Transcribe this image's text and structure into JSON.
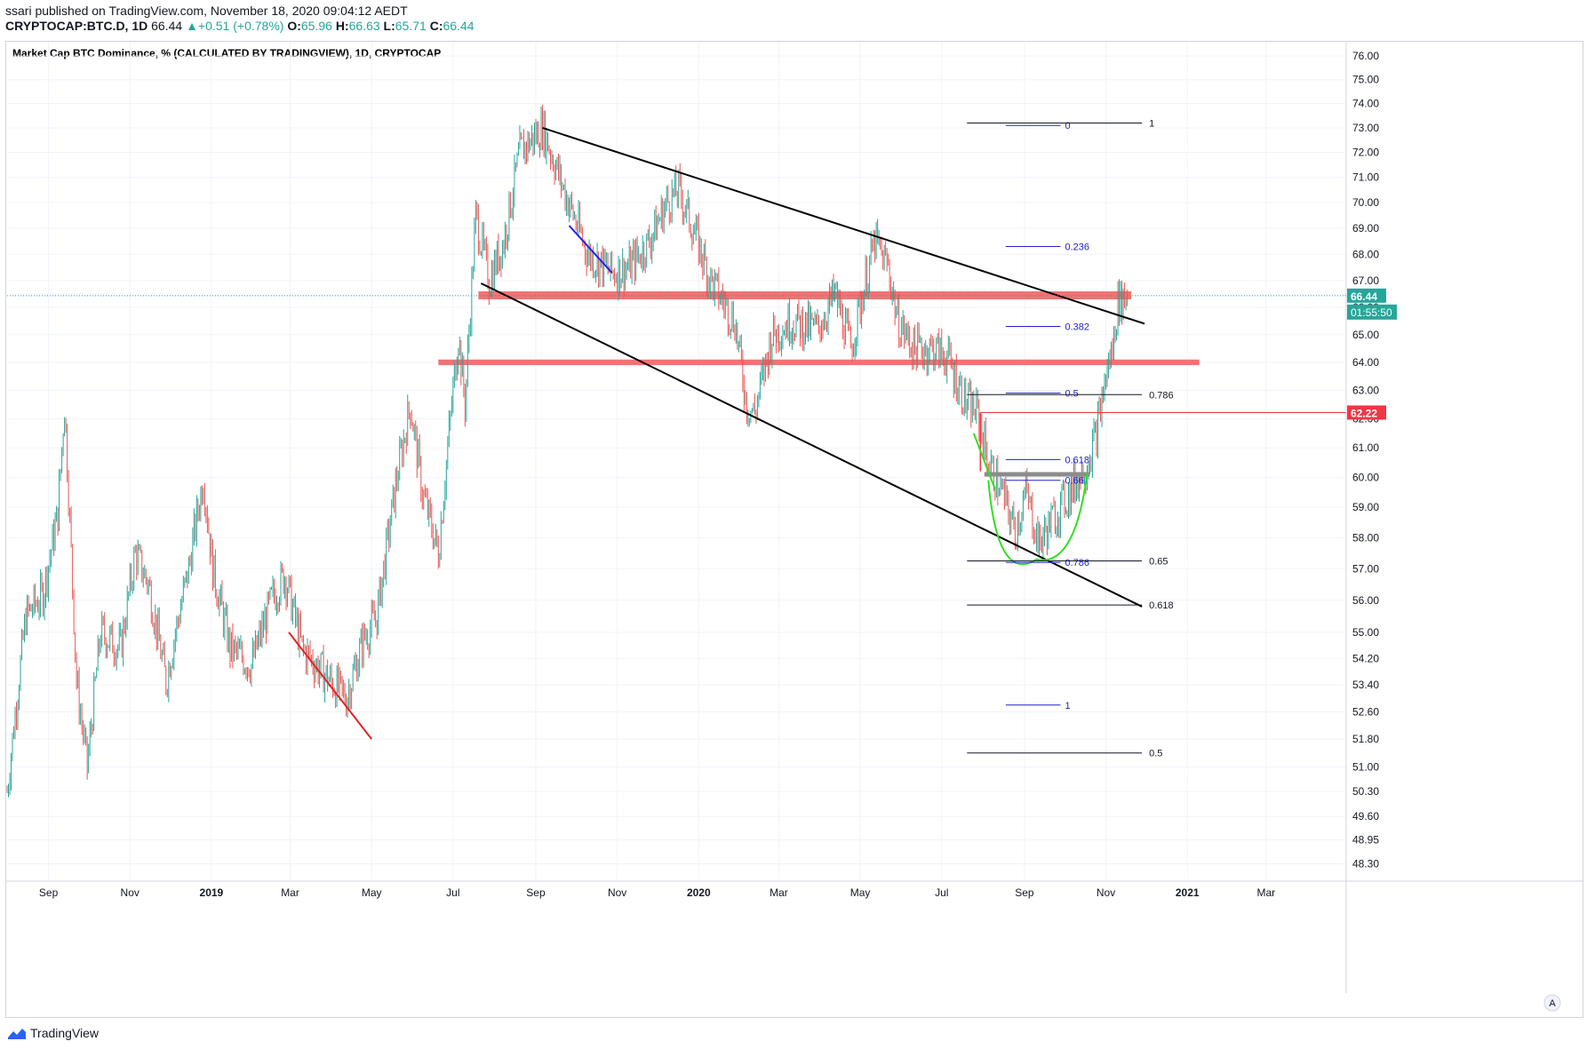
{
  "header": {
    "published": "ssari published on TradingView.com, November 18, 2020 09:04:12 AEDT",
    "symbol": "CRYPTOCAP:BTC.D, 1D",
    "last": "66.44",
    "change_arrow": "▲",
    "change": "+0.51 (+0.78%)",
    "o_label": "O:",
    "o": "65.96",
    "h_label": "H:",
    "h": "66.63",
    "l_label": "L:",
    "l": "65.71",
    "c_label": "C:",
    "c": "66.44"
  },
  "brand": {
    "name": "TradingView",
    "icon": "tradingview-logo-icon"
  },
  "colors": {
    "up": "#26a69a",
    "down": "#ef5350",
    "zone": "#f07474",
    "fib_blue": "#1e22c8",
    "fib_black": "#131722",
    "green_cup": "#33dd22",
    "gray_line": "#8c8c8c",
    "price_label": "#26a69a",
    "red_label": "#f23645"
  },
  "chart_data": {
    "type": "candlestick",
    "title": "Market Cap BTC Dominance, % (CALCULATED BY TRADINGVIEW), 1D, CRYPTOCAP",
    "y_scale": "log",
    "ylim": [
      48.0,
      76.5
    ],
    "y_ticks": [
      "76.00",
      "75.00",
      "74.00",
      "73.00",
      "72.00",
      "71.00",
      "70.00",
      "69.00",
      "68.00",
      "67.00",
      "66.00",
      "65.00",
      "64.00",
      "63.00",
      "62.00",
      "61.00",
      "60.00",
      "59.00",
      "58.00",
      "57.00",
      "56.00",
      "55.00",
      "54.20",
      "53.40",
      "52.60",
      "51.80",
      "51.00",
      "50.30",
      "49.60",
      "48.95",
      "48.30"
    ],
    "x_ticks": [
      "Sep",
      "Nov",
      "2019",
      "Mar",
      "May",
      "Jul",
      "Sep",
      "Nov",
      "2020",
      "Mar",
      "May",
      "Jul",
      "Sep",
      "Nov",
      "2021",
      "Mar"
    ],
    "x_tick_bold": [
      false,
      false,
      true,
      false,
      false,
      false,
      false,
      false,
      true,
      false,
      false,
      false,
      false,
      false,
      true,
      false
    ],
    "x_range_months": [
      "2018-08",
      "2021-04"
    ],
    "price_path": [
      [
        "2018-08-01",
        50.3
      ],
      [
        "2018-08-15",
        55.5
      ],
      [
        "2018-08-28",
        56.2
      ],
      [
        "2018-09-08",
        58.8
      ],
      [
        "2018-09-13",
        62.5
      ],
      [
        "2018-09-22",
        53.5
      ],
      [
        "2018-09-30",
        51.0
      ],
      [
        "2018-10-10",
        55.0
      ],
      [
        "2018-10-25",
        54.5
      ],
      [
        "2018-11-05",
        57.5
      ],
      [
        "2018-11-15",
        56.5
      ],
      [
        "2018-11-28",
        53.5
      ],
      [
        "2018-12-05",
        55.0
      ],
      [
        "2018-12-15",
        57.0
      ],
      [
        "2018-12-26",
        60.0
      ],
      [
        "2019-01-02",
        57.0
      ],
      [
        "2019-01-15",
        54.5
      ],
      [
        "2019-01-31",
        54.0
      ],
      [
        "2019-02-15",
        56.0
      ],
      [
        "2019-02-25",
        56.8
      ],
      [
        "2019-03-10",
        54.5
      ],
      [
        "2019-03-25",
        53.8
      ],
      [
        "2019-04-12",
        53.0
      ],
      [
        "2019-04-25",
        54.8
      ],
      [
        "2019-05-05",
        55.5
      ],
      [
        "2019-05-20",
        60.0
      ],
      [
        "2019-05-30",
        62.5
      ],
      [
        "2019-06-08",
        59.5
      ],
      [
        "2019-06-20",
        57.5
      ],
      [
        "2019-06-27",
        61.0
      ],
      [
        "2019-07-05",
        65.0
      ],
      [
        "2019-07-10",
        62.5
      ],
      [
        "2019-07-18",
        69.5
      ],
      [
        "2019-07-28",
        67.0
      ],
      [
        "2019-08-08",
        68.5
      ],
      [
        "2019-08-20",
        72.0
      ],
      [
        "2019-09-06",
        73.0
      ],
      [
        "2019-09-22",
        70.5
      ],
      [
        "2019-10-10",
        68.0
      ],
      [
        "2019-10-28",
        67.3
      ],
      [
        "2019-11-10",
        67.5
      ],
      [
        "2019-11-25",
        68.5
      ],
      [
        "2019-12-08",
        70.0
      ],
      [
        "2019-12-17",
        70.5
      ],
      [
        "2019-12-31",
        68.5
      ],
      [
        "2020-01-10",
        67.0
      ],
      [
        "2020-01-28",
        65.5
      ],
      [
        "2020-02-06",
        62.5
      ],
      [
        "2020-02-12",
        62.2
      ],
      [
        "2020-02-25",
        65.0
      ],
      [
        "2020-03-10",
        65.5
      ],
      [
        "2020-03-30",
        65.2
      ],
      [
        "2020-04-12",
        66.5
      ],
      [
        "2020-04-24",
        64.5
      ],
      [
        "2020-05-05",
        67.0
      ],
      [
        "2020-05-12",
        68.5
      ],
      [
        "2020-05-22",
        67.5
      ],
      [
        "2020-05-29",
        65.5
      ],
      [
        "2020-06-10",
        64.5
      ],
      [
        "2020-06-25",
        64.5
      ],
      [
        "2020-07-05",
        64.2
      ],
      [
        "2020-07-20",
        62.5
      ],
      [
        "2020-07-28",
        62.2
      ],
      [
        "2020-08-05",
        60.5
      ],
      [
        "2020-08-15",
        59.5
      ],
      [
        "2020-08-25",
        58.2
      ],
      [
        "2020-09-02",
        59.5
      ],
      [
        "2020-09-12",
        57.8
      ],
      [
        "2020-09-22",
        58.6
      ],
      [
        "2020-10-05",
        59.5
      ],
      [
        "2020-10-18",
        60.5
      ],
      [
        "2020-10-25",
        61.5
      ],
      [
        "2020-11-01",
        63.5
      ],
      [
        "2020-11-06",
        64.5
      ],
      [
        "2020-11-10",
        66.2
      ],
      [
        "2020-11-17",
        66.44
      ]
    ],
    "last_price": 66.44,
    "countdown": "01:55:50",
    "red_level": 62.22,
    "zones": [
      {
        "from": "2019-07-20",
        "to": "2020-11-20",
        "low": 66.3,
        "high": 66.6
      },
      {
        "from": "2019-06-20",
        "to": "2021-01-10",
        "low": 63.9,
        "high": 64.1
      }
    ],
    "trendlines": [
      {
        "color": "#000000",
        "points": [
          [
            "2019-09-06",
            73.0
          ],
          [
            "2020-11-30",
            65.4
          ]
        ]
      },
      {
        "color": "#000000",
        "points": [
          [
            "2019-07-22",
            66.9
          ],
          [
            "2020-11-28",
            55.8
          ]
        ]
      },
      {
        "color": "#e82020",
        "points": [
          [
            "2019-02-28",
            55.0
          ],
          [
            "2019-05-01",
            51.8
          ]
        ]
      },
      {
        "color": "#2222ee",
        "points": [
          [
            "2019-09-26",
            69.1
          ],
          [
            "2019-10-28",
            67.3
          ]
        ]
      },
      {
        "color": "#f23645",
        "points": [
          [
            "2020-07-30",
            62.22
          ],
          [
            "2021-04-30",
            62.22
          ]
        ]
      }
    ],
    "fib_blue": [
      {
        "label": "0",
        "value": 73.1
      },
      {
        "label": "0.236",
        "value": 68.3
      },
      {
        "label": "0.382",
        "value": 65.3
      },
      {
        "label": "0.5",
        "value": 62.9
      },
      {
        "label": "0.618",
        "value": 60.6
      },
      {
        "label": "0.66",
        "value": 59.9
      },
      {
        "label": "0.786",
        "value": 57.2
      },
      {
        "label": "1",
        "value": 52.8
      }
    ],
    "fib_black": [
      {
        "label": "1",
        "value": 73.2
      },
      {
        "label": "0.786",
        "value": 62.85
      },
      {
        "label": "0.65",
        "value": 57.25
      },
      {
        "label": "0.618",
        "value": 55.85
      },
      {
        "label": "0.5",
        "value": 51.4
      }
    ],
    "gray_level": {
      "value": 60.1,
      "from": "2020-08-02",
      "to": "2020-10-20"
    },
    "cup": {
      "from": "2020-08-05",
      "bottom": "2020-09-10",
      "to": "2020-10-18",
      "top": 59.9,
      "low": 57.3
    }
  }
}
